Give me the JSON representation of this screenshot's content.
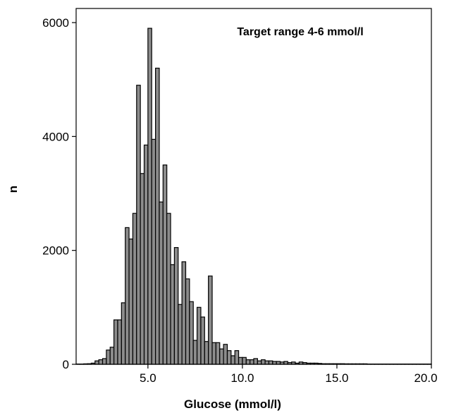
{
  "chart_data": {
    "type": "bar",
    "subtype": "histogram",
    "xlabel": "Glucose (mmol/l)",
    "ylabel": "n",
    "annotation": "Target range 4-6 mmol/l",
    "xlim": [
      1.2,
      20.0
    ],
    "ylim": [
      0,
      6000
    ],
    "xticks": [
      5.0,
      10.0,
      15.0,
      20.0
    ],
    "xtick_labels": [
      "5.0",
      "10.0",
      "15.0",
      "20.0"
    ],
    "yticks": [
      0,
      2000,
      4000,
      6000
    ],
    "ytick_labels": [
      "0",
      "2000",
      "4000",
      "6000"
    ],
    "bin_width": 0.2,
    "bins_start": [
      1.2,
      1.4,
      1.6,
      1.8,
      2.0,
      2.2,
      2.4,
      2.6,
      2.8,
      3.0,
      3.2,
      3.4,
      3.6,
      3.8,
      4.0,
      4.2,
      4.4,
      4.6,
      4.8,
      5.0,
      5.2,
      5.4,
      5.6,
      5.8,
      6.0,
      6.2,
      6.4,
      6.6,
      6.8,
      7.0,
      7.2,
      7.4,
      7.6,
      7.8,
      8.0,
      8.2,
      8.4,
      8.6,
      8.8,
      9.0,
      9.2,
      9.4,
      9.6,
      9.8,
      10.0,
      10.2,
      10.4,
      10.6,
      10.8,
      11.0,
      11.2,
      11.4,
      11.6,
      11.8,
      12.0,
      12.2,
      12.4,
      12.6,
      12.8,
      13.0,
      13.2,
      13.4,
      13.6,
      13.8,
      14.0,
      14.2,
      14.4,
      14.6,
      14.8,
      15.0,
      15.2,
      15.4,
      15.6,
      15.8,
      16.0,
      16.2,
      16.4,
      16.6,
      16.8,
      17.0,
      17.2,
      17.4,
      17.6,
      17.8,
      18.0,
      18.2,
      18.4,
      18.6,
      18.8,
      19.0,
      19.2,
      19.4,
      19.6,
      19.8
    ],
    "values": [
      5,
      5,
      8,
      10,
      20,
      60,
      80,
      100,
      250,
      300,
      780,
      780,
      1080,
      2400,
      2200,
      2650,
      4900,
      3350,
      3850,
      5900,
      3950,
      5200,
      2850,
      3500,
      2650,
      1750,
      2050,
      1050,
      1800,
      1500,
      1100,
      420,
      1000,
      830,
      400,
      1550,
      380,
      380,
      270,
      350,
      240,
      150,
      240,
      120,
      120,
      80,
      80,
      100,
      60,
      80,
      60,
      60,
      50,
      50,
      40,
      50,
      30,
      40,
      20,
      40,
      30,
      20,
      20,
      20,
      15,
      10,
      10,
      10,
      10,
      10,
      10,
      8,
      8,
      8,
      8,
      8,
      8,
      5,
      5,
      5,
      5,
      5,
      5,
      5,
      5,
      5,
      5,
      5,
      5,
      5,
      5,
      5,
      5,
      5
    ]
  }
}
